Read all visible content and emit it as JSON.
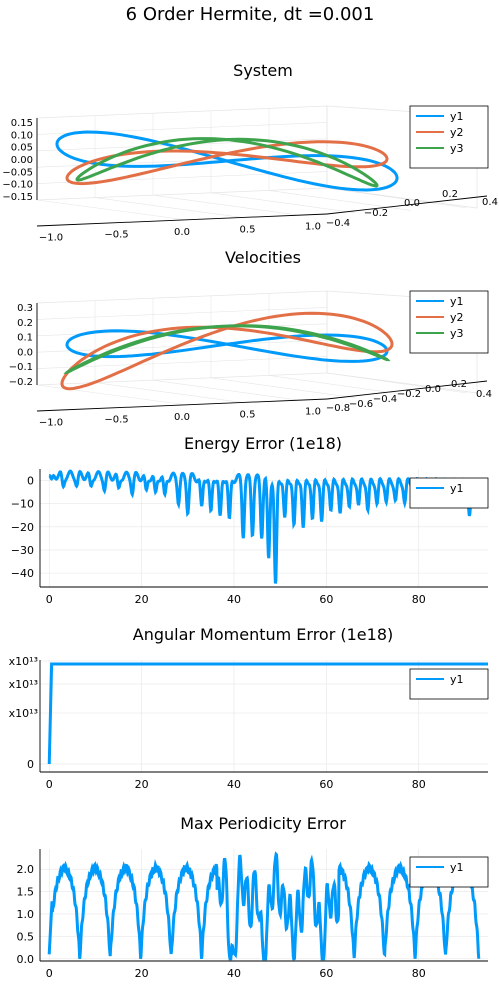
{
  "suptitle": "6 Order Hermite, dt =0.001",
  "colors": {
    "y1": "#009AFA",
    "y2": "#E26F46",
    "y3": "#3DA44D",
    "grid": "#E6E6E6"
  },
  "chart_data": [
    {
      "type": "line",
      "projection": "3d",
      "title": "System",
      "series": [
        {
          "name": "y1"
        },
        {
          "name": "y2"
        },
        {
          "name": "y3"
        }
      ],
      "x_ticks": [
        "−1.0",
        "−0.5",
        "0.0",
        "0.5",
        "1.0"
      ],
      "y_ticks": [
        "−0.4",
        "−0.2",
        "0.0",
        "0.2",
        "0.4"
      ],
      "z_ticks": [
        "0.15",
        "0.10",
        "0.05",
        "0.00",
        "−0.05",
        "−0.10",
        "−0.15"
      ],
      "xlim": [
        -1.1,
        1.1
      ],
      "ylim": [
        -0.4,
        0.45
      ],
      "zlim": [
        -0.17,
        0.17
      ],
      "legend": "top-right"
    },
    {
      "type": "line",
      "projection": "3d",
      "title": "Velocities",
      "series": [
        {
          "name": "y1"
        },
        {
          "name": "y2"
        },
        {
          "name": "y3"
        }
      ],
      "x_ticks": [
        "−1.0",
        "−0.5",
        "0.0",
        "0.5",
        "1.0"
      ],
      "y_ticks": [
        "−0.8",
        "−0.6",
        "−0.4",
        "−0.2",
        "0.0",
        "0.2",
        "0.4"
      ],
      "z_ticks": [
        "0.3",
        "0.2",
        "0.1",
        "0.0",
        "−0.1",
        "−0.2"
      ],
      "xlim": [
        -1.1,
        1.1
      ],
      "ylim": [
        -0.85,
        0.45
      ],
      "zlim": [
        -0.23,
        0.4
      ],
      "legend": "top-right"
    },
    {
      "type": "line",
      "title": "Energy Error (1e18)",
      "series": [
        {
          "name": "y1"
        }
      ],
      "x_ticks": [
        "0",
        "20",
        "40",
        "60",
        "80"
      ],
      "y_ticks": [
        "0",
        "−10",
        "−20",
        "−30",
        "−40"
      ],
      "xlim": [
        -2,
        95
      ],
      "ylim": [
        -46,
        5
      ],
      "spikes": [
        [
          0.5,
          -1.5
        ],
        [
          3,
          -3
        ],
        [
          6,
          -2
        ],
        [
          9,
          -3
        ],
        [
          12,
          -3.5
        ],
        [
          15,
          -4
        ],
        [
          18,
          -4.5
        ],
        [
          21,
          -5
        ],
        [
          23,
          -6
        ],
        [
          25,
          -7
        ],
        [
          28,
          -8
        ],
        [
          30,
          -12
        ],
        [
          33,
          -12
        ],
        [
          35,
          -14
        ],
        [
          37,
          -16
        ],
        [
          39,
          -17
        ],
        [
          42,
          -22
        ],
        [
          44,
          -21
        ],
        [
          46,
          -22
        ],
        [
          47.5,
          -33
        ],
        [
          49,
          -45
        ],
        [
          51,
          -16
        ],
        [
          53,
          -19
        ],
        [
          55,
          -20
        ],
        [
          57,
          -16
        ],
        [
          59,
          -17
        ],
        [
          61,
          -12
        ],
        [
          63,
          -13
        ],
        [
          65,
          -10
        ],
        [
          67,
          -9
        ],
        [
          69,
          -11
        ],
        [
          71,
          -8
        ],
        [
          73,
          -7
        ],
        [
          75,
          -6
        ],
        [
          77,
          -7
        ],
        [
          79,
          -5
        ],
        [
          81,
          -5
        ],
        [
          83,
          -4
        ],
        [
          85,
          -6
        ],
        [
          87,
          -5
        ],
        [
          89,
          -5
        ],
        [
          91,
          -11
        ]
      ],
      "legend": "top-right"
    },
    {
      "type": "line",
      "title": "Angular Momentum Error (1e18)",
      "series": [
        {
          "name": "y1"
        }
      ],
      "x_ticks": [
        "0",
        "20",
        "40",
        "60",
        "80"
      ],
      "y_ticks": [
        "0",
        "x10¹³",
        "x10¹³",
        "x10¹³"
      ],
      "xlim": [
        -2,
        95
      ],
      "ylim": [
        -0.05,
        1.0
      ],
      "points": [
        [
          0,
          0
        ],
        [
          0.3,
          1
        ],
        [
          93,
          1
        ]
      ],
      "legend": "top-right"
    },
    {
      "type": "line",
      "title": "Max Periodicity Error",
      "series": [
        {
          "name": "y1"
        }
      ],
      "x_ticks": [
        "0",
        "20",
        "40",
        "60",
        "80"
      ],
      "y_ticks": [
        "0.0",
        "0.5",
        "1.0",
        "1.5",
        "2.0"
      ],
      "xlim": [
        -2,
        95
      ],
      "ylim": [
        -0.05,
        2.45
      ],
      "troughs": [
        0,
        6.6,
        13.2,
        19.8,
        26.4,
        33,
        39.6,
        46.2,
        52.8,
        59.4,
        66,
        72.6,
        79.2,
        85.8,
        93
      ],
      "legend": "top-right"
    }
  ]
}
